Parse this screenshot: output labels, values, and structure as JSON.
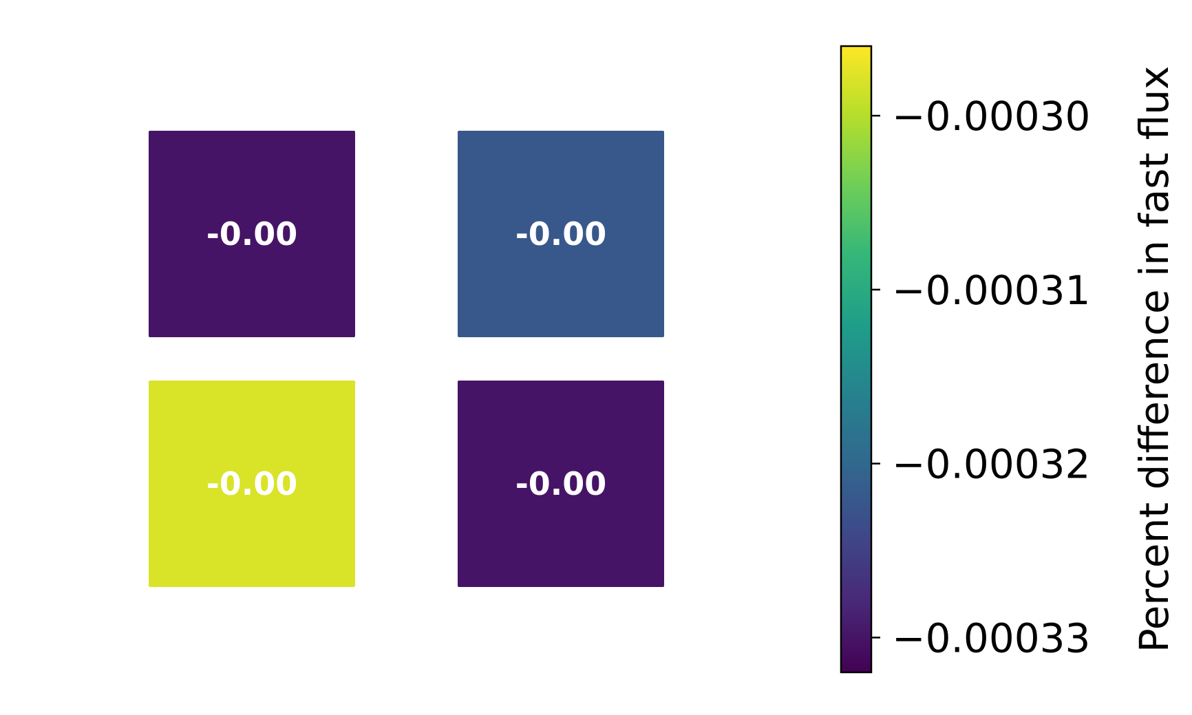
{
  "chart_data": {
    "type": "heatmap",
    "title": "",
    "xlabel": "",
    "ylabel": "",
    "rows": 2,
    "cols": 2,
    "values": [
      [
        -0.00033,
        -0.000322
      ],
      [
        -0.000298,
        -0.00033
      ]
    ],
    "cell_labels": [
      [
        "-0.00",
        "-0.00"
      ],
      [
        "-0.00",
        "-0.00"
      ]
    ],
    "colormap": "viridis",
    "colorbar": {
      "label": "Percent difference in fast flux",
      "range": [
        -0.000332,
        -0.000296
      ],
      "ticks": [
        -0.0003,
        -0.00031,
        -0.00032,
        -0.00033
      ],
      "tick_labels": [
        "−0.00030",
        "−0.00031",
        "−0.00032",
        "−0.00033"
      ],
      "position": "right"
    },
    "colors": {
      "viridis_stops": [
        "#440154",
        "#482878",
        "#3e4989",
        "#31688e",
        "#26828e",
        "#1f9e89",
        "#35b779",
        "#6ece58",
        "#b5de2b",
        "#fde725"
      ],
      "cell_text": "#ffffff",
      "axis": "#000000"
    },
    "grid": false,
    "legend": "none"
  }
}
